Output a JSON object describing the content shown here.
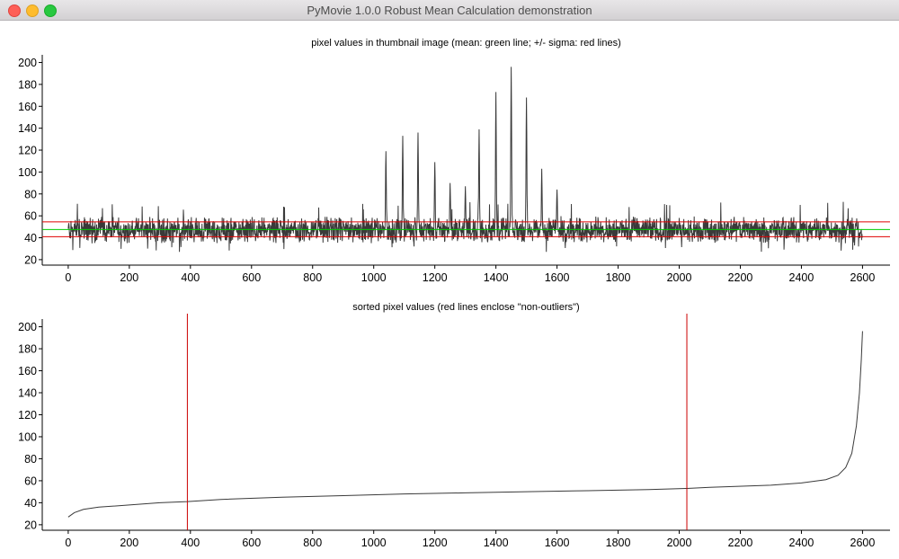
{
  "window": {
    "title": "PyMovie 1.0.0 Robust Mean Calculation demonstration"
  },
  "chart_data": [
    {
      "type": "line",
      "title": "pixel values in thumbnail image (mean: green line; +/- sigma: red lines)",
      "xlim": [
        -85,
        2690
      ],
      "ylim": [
        15,
        207
      ],
      "x_ticks": [
        0,
        200,
        400,
        600,
        800,
        1000,
        1200,
        1400,
        1600,
        1800,
        2000,
        2200,
        2400,
        2600
      ],
      "y_ticks": [
        20,
        40,
        60,
        80,
        100,
        120,
        140,
        160,
        180,
        200
      ],
      "series": [
        {
          "color": "#3a3a3a",
          "n_points": 2601,
          "baseline_mean": 47,
          "noise_range": [
            27,
            73
          ],
          "peaks": [
            {
              "x": 1040,
              "y": 119
            },
            {
              "x": 1095,
              "y": 133
            },
            {
              "x": 1145,
              "y": 136
            },
            {
              "x": 1200,
              "y": 109
            },
            {
              "x": 1250,
              "y": 90
            },
            {
              "x": 1300,
              "y": 87
            },
            {
              "x": 1345,
              "y": 139
            },
            {
              "x": 1400,
              "y": 173
            },
            {
              "x": 1450,
              "y": 196
            },
            {
              "x": 1500,
              "y": 168
            },
            {
              "x": 1550,
              "y": 103
            },
            {
              "x": 1600,
              "y": 84
            }
          ]
        }
      ],
      "hlines": [
        {
          "y": 47.5,
          "color": "#00cc00"
        },
        {
          "y": 54.5,
          "color": "#e00000"
        },
        {
          "y": 41,
          "color": "#e00000"
        }
      ]
    },
    {
      "type": "line",
      "title": "sorted pixel values (red lines enclose \"non-outliers\")",
      "xlim": [
        -85,
        2690
      ],
      "ylim": [
        15,
        207
      ],
      "x_ticks": [
        0,
        200,
        400,
        600,
        800,
        1000,
        1200,
        1400,
        1600,
        1800,
        2000,
        2200,
        2400,
        2600
      ],
      "y_ticks": [
        20,
        40,
        60,
        80,
        100,
        120,
        140,
        160,
        180,
        200
      ],
      "series": [
        {
          "color": "#3a3a3a",
          "points": [
            [
              0,
              27
            ],
            [
              20,
              31
            ],
            [
              50,
              34
            ],
            [
              100,
              36
            ],
            [
              200,
              38
            ],
            [
              300,
              40
            ],
            [
              390,
              41
            ],
            [
              500,
              43
            ],
            [
              700,
              45
            ],
            [
              900,
              46.5
            ],
            [
              1100,
              48
            ],
            [
              1300,
              49
            ],
            [
              1500,
              50
            ],
            [
              1700,
              51
            ],
            [
              1900,
              52
            ],
            [
              2025,
              53
            ],
            [
              2100,
              54
            ],
            [
              2300,
              56
            ],
            [
              2400,
              58
            ],
            [
              2480,
              61
            ],
            [
              2520,
              65
            ],
            [
              2545,
              72
            ],
            [
              2565,
              85
            ],
            [
              2580,
              110
            ],
            [
              2590,
              140
            ],
            [
              2596,
              170
            ],
            [
              2600,
              196
            ]
          ]
        }
      ],
      "vlines": [
        {
          "x": 390,
          "color": "#cc0000"
        },
        {
          "x": 2025,
          "color": "#cc0000"
        }
      ]
    }
  ]
}
